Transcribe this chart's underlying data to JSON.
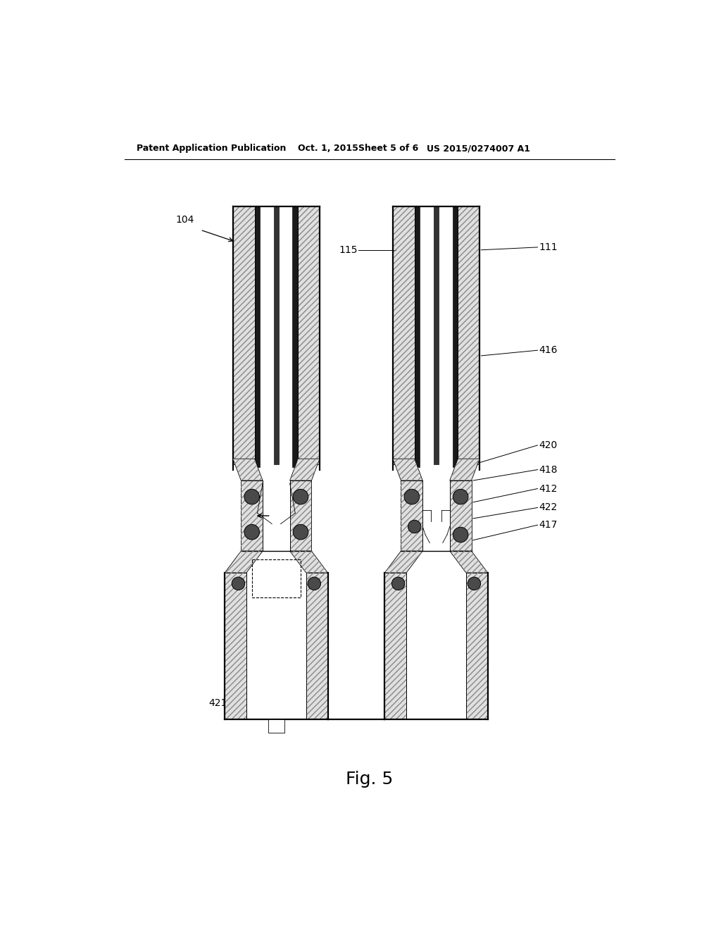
{
  "title_line1": "Patent Application Publication",
  "title_line2": "Oct. 1, 2015",
  "title_line3": "Sheet 5 of 6",
  "title_line4": "US 2015/0274007 A1",
  "fig_label": "Fig. 5",
  "bg_color": "#ffffff",
  "black": "#000000",
  "dark_gray": "#555555",
  "hatch_fill": "#e0e0e0",
  "note_104": "104",
  "note_115": "115",
  "note_111": "111",
  "note_416": "416",
  "note_420": "420",
  "note_418": "418",
  "note_412": "412",
  "note_422": "422",
  "note_417": "417",
  "note_421": "421",
  "lw_thick": 1.6,
  "lw_med": 1.0,
  "lw_thin": 0.6,
  "lw_hair": 0.4
}
